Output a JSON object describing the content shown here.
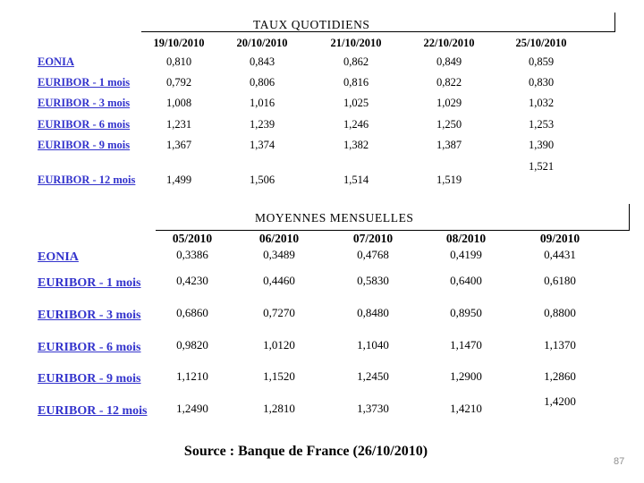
{
  "daily": {
    "title": "TAUX QUOTIDIENS",
    "columns": [
      "19/10/2010",
      "20/10/2010",
      "21/10/2010",
      "22/10/2010",
      "25/10/2010"
    ],
    "rows": [
      {
        "label": "EONIA",
        "values": [
          "0,810",
          "0,843",
          "0,862",
          "0,849",
          "0,859"
        ]
      },
      {
        "label": "EURIBOR - 1 mois",
        "values": [
          "0,792",
          "0,806",
          "0,816",
          "0,822",
          "0,830"
        ]
      },
      {
        "label": "EURIBOR - 3 mois",
        "values": [
          "1,008",
          "1,016",
          "1,025",
          "1,029",
          "1,032"
        ]
      },
      {
        "label": "EURIBOR - 6 mois",
        "values": [
          "1,231",
          "1,239",
          "1,246",
          "1,250",
          "1,253"
        ]
      },
      {
        "label": "EURIBOR - 9 mois",
        "values": [
          "1,367",
          "1,374",
          "1,382",
          "1,387",
          "1,390"
        ]
      },
      {
        "label": "",
        "values": [
          "",
          "",
          "",
          "",
          "1,521"
        ]
      },
      {
        "label": "EURIBOR - 12 mois",
        "values": [
          "1,499",
          "1,506",
          "1,514",
          "1,519",
          ""
        ]
      }
    ]
  },
  "monthly": {
    "title": "MOYENNES MENSUELLES",
    "columns": [
      "05/2010",
      "06/2010",
      "07/2010",
      "08/2010",
      "09/2010"
    ],
    "rows": [
      {
        "label": "EONIA",
        "values": [
          "0,3386",
          "0,3489",
          "0,4768",
          "0,4199",
          "0,4431"
        ]
      },
      {
        "label": "EURIBOR - 1 mois",
        "values": [
          "0,4230",
          "0,4460",
          "0,5830",
          "0,6400",
          "0,6180"
        ]
      },
      {
        "label": "EURIBOR - 3 mois",
        "values": [
          "0,6860",
          "0,7270",
          "0,8480",
          "0,8950",
          "0,8800"
        ]
      },
      {
        "label": "EURIBOR - 6 mois",
        "values": [
          "0,9820",
          "1,0120",
          "1,1040",
          "1,1470",
          "1,1370"
        ]
      },
      {
        "label": "EURIBOR - 9 mois",
        "values": [
          "1,1210",
          "1,1520",
          "1,2450",
          "1,2900",
          "1,2860"
        ]
      },
      {
        "label": "",
        "values": [
          "",
          "",
          "",
          "",
          "1,4200"
        ]
      },
      {
        "label": "EURIBOR - 12 mois",
        "values": [
          "1,2490",
          "1,2810",
          "1,3730",
          "1,4210",
          ""
        ]
      }
    ]
  },
  "footer": {
    "source_text": "Source : Banque de France (26/10/2010)",
    "page_number": "87"
  },
  "colors": {
    "link_blue": "#3333CC",
    "text_black": "#000000",
    "page_number_gray": "#8f8f8f"
  }
}
